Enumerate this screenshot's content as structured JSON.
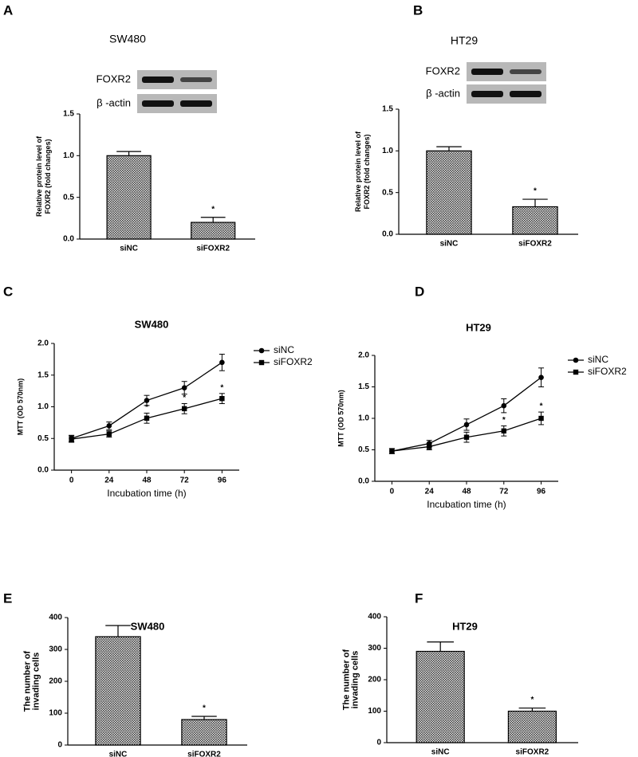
{
  "chart_data": [
    {
      "panel": "A",
      "type": "bar",
      "title": "SW480",
      "blot": [
        "FOXR2",
        "β -actin"
      ],
      "ylabel": [
        "Relative protein level of",
        "FOXR2 (fold changes)"
      ],
      "categories": [
        "siNC",
        "siFOXR2"
      ],
      "values": [
        1.0,
        0.2
      ],
      "errors": [
        0.05,
        0.06
      ],
      "significance": [
        null,
        "*"
      ],
      "color": "#444444",
      "ylim": [
        0,
        1.5
      ],
      "yticks": [
        {
          "value": 0,
          "label": "0.0"
        },
        {
          "value": 0.5,
          "label": "0.5"
        },
        {
          "value": 1,
          "label": "1.0"
        },
        {
          "value": 1.5,
          "label": "1.5"
        }
      ]
    },
    {
      "panel": "B",
      "type": "bar",
      "title": "HT29",
      "blot": [
        "FOXR2",
        "β -actin"
      ],
      "ylabel": [
        "Relative protein level of",
        "FOXR2 (fold changes)"
      ],
      "categories": [
        "siNC",
        "siFOXR2"
      ],
      "values": [
        1.0,
        0.33
      ],
      "errors": [
        0.05,
        0.09
      ],
      "significance": [
        null,
        "*"
      ],
      "color": "#444444",
      "ylim": [
        0,
        1.5
      ],
      "yticks": [
        {
          "value": 0,
          "label": "0.0"
        },
        {
          "value": 0.5,
          "label": "0.5"
        },
        {
          "value": 1,
          "label": "1.0"
        },
        {
          "value": 1.5,
          "label": "1.5"
        }
      ]
    },
    {
      "panel": "C",
      "type": "line",
      "title": "SW480",
      "xlabel": "Incubation time (h)",
      "ylabel": [
        "MTT (OD 570nm)"
      ],
      "x": [
        0,
        24,
        48,
        72,
        96
      ],
      "xlim": [
        -11,
        107
      ],
      "xticks": [
        0,
        24,
        48,
        72,
        96
      ],
      "ylim": [
        0,
        2
      ],
      "yticks": [
        {
          "value": 0,
          "label": "0.0"
        },
        {
          "value": 0.5,
          "label": "0.5"
        },
        {
          "value": 1,
          "label": "1.0"
        },
        {
          "value": 1.5,
          "label": "1.5"
        },
        {
          "value": 2,
          "label": "2.0"
        }
      ],
      "series": [
        {
          "name": "siNC",
          "color": "#000000",
          "marker": "circle",
          "values": [
            0.5,
            0.7,
            1.1,
            1.3,
            1.7
          ],
          "errors": [
            0.05,
            0.06,
            0.08,
            0.1,
            0.13
          ],
          "labels": [
            null,
            null,
            null,
            null,
            null
          ]
        },
        {
          "name": "siFOXR2",
          "color": "#000000",
          "marker": "square",
          "values": [
            0.49,
            0.57,
            0.82,
            0.97,
            1.13
          ],
          "errors": [
            0.05,
            0.05,
            0.08,
            0.08,
            0.08
          ],
          "labels": [
            null,
            null,
            "*",
            "*",
            "*"
          ]
        }
      ]
    },
    {
      "panel": "D",
      "type": "line",
      "title": "HT29",
      "xlabel": "Incubation time (h)",
      "ylabel": [
        "MTT (OD 570nm)"
      ],
      "x": [
        0,
        24,
        48,
        72,
        96
      ],
      "xlim": [
        -11,
        107
      ],
      "xticks": [
        0,
        24,
        48,
        72,
        96
      ],
      "ylim": [
        0,
        2
      ],
      "yticks": [
        {
          "value": 0,
          "label": "0.0"
        },
        {
          "value": 0.5,
          "label": "0.5"
        },
        {
          "value": 1,
          "label": "1.0"
        },
        {
          "value": 1.5,
          "label": "1.5"
        },
        {
          "value": 2,
          "label": "2.0"
        }
      ],
      "series": [
        {
          "name": "siNC",
          "color": "#000000",
          "marker": "circle",
          "values": [
            0.48,
            0.6,
            0.9,
            1.2,
            1.65
          ],
          "errors": [
            0.04,
            0.05,
            0.09,
            0.11,
            0.15
          ],
          "labels": [
            null,
            null,
            null,
            null,
            null
          ]
        },
        {
          "name": "siFOXR2",
          "color": "#000000",
          "marker": "square",
          "values": [
            0.48,
            0.55,
            0.7,
            0.8,
            1.0
          ],
          "errors": [
            0.04,
            0.05,
            0.08,
            0.08,
            0.1
          ],
          "labels": [
            null,
            null,
            null,
            "*",
            "*"
          ]
        }
      ]
    },
    {
      "panel": "E",
      "type": "bar",
      "title": "SW480",
      "ylabel": [
        "The number of",
        "invading cells"
      ],
      "categories": [
        "siNC",
        "siFOXR2"
      ],
      "values": [
        340,
        80
      ],
      "errors": [
        35,
        10
      ],
      "significance": [
        null,
        "*"
      ],
      "color": "#444444",
      "ylim": [
        0,
        400
      ],
      "yticks": [
        0,
        100,
        200,
        300,
        400
      ]
    },
    {
      "panel": "F",
      "type": "bar",
      "title": "HT29",
      "ylabel": [
        "The number of",
        "invading cells"
      ],
      "categories": [
        "siNC",
        "siFOXR2"
      ],
      "values": [
        290,
        100
      ],
      "errors": [
        30,
        10
      ],
      "significance": [
        null,
        "*"
      ],
      "color": "#444444",
      "ylim": [
        0,
        400
      ],
      "yticks": [
        0,
        100,
        200,
        300,
        400
      ]
    }
  ]
}
